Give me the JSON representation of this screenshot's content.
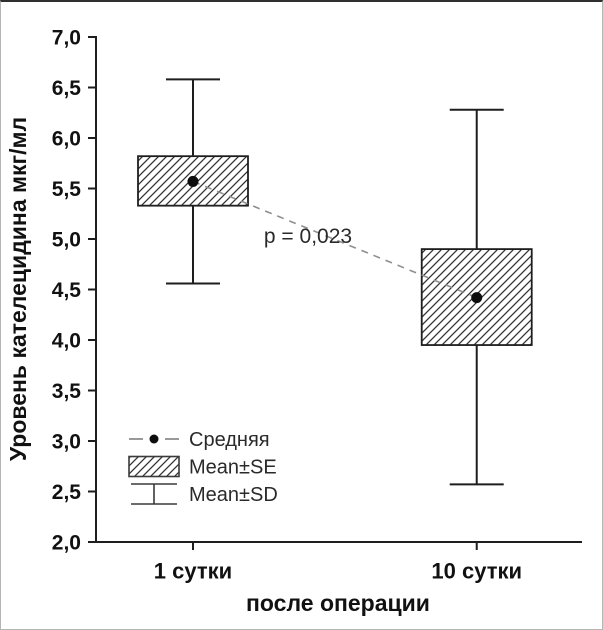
{
  "chart_data": {
    "type": "box",
    "title": "",
    "xlabel": "после операции",
    "ylabel": "Уровень кателецидина мкг/мл",
    "ylim": [
      2.0,
      7.0
    ],
    "ytick_step": 0.5,
    "ytick_labels": [
      "2,0",
      "2,5",
      "3,0",
      "3,5",
      "4,0",
      "4,5",
      "5,0",
      "5,5",
      "6,0",
      "6,5",
      "7,0"
    ],
    "categories": [
      "1 сутки",
      "10 сутки"
    ],
    "series": [
      {
        "category": "1 сутки",
        "mean": 5.57,
        "se_low": 5.33,
        "se_high": 5.82,
        "sd_low": 4.56,
        "sd_high": 6.58
      },
      {
        "category": "10 сутки",
        "mean": 4.42,
        "se_low": 3.95,
        "se_high": 4.9,
        "sd_low": 2.57,
        "sd_high": 6.28
      }
    ],
    "connector_style": "dashed",
    "annotation": "p = 0,023",
    "legend": [
      {
        "label": "Средняя",
        "marker": "mean-line"
      },
      {
        "label": "Mean±SE",
        "marker": "hatched-box"
      },
      {
        "label": "Mean±SD",
        "marker": "whisker"
      }
    ],
    "legend_position": "bottom-left-inside",
    "grid": false
  }
}
